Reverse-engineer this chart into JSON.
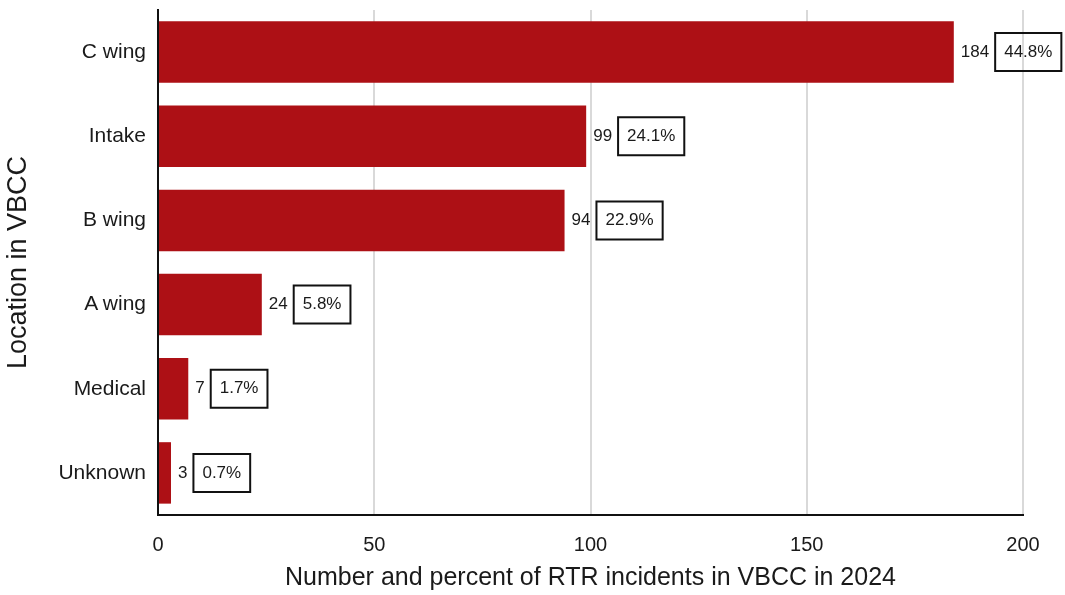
{
  "chart_data": {
    "type": "bar",
    "orientation": "horizontal",
    "categories": [
      "C wing",
      "Intake",
      "B wing",
      "A wing",
      "Medical",
      "Unknown"
    ],
    "values": [
      184,
      99,
      94,
      24,
      7,
      3
    ],
    "color": "#ad1015",
    "data_labels": true,
    "annotations": [
      {
        "text": "44.8%",
        "x": 184,
        "y": "C wing"
      },
      {
        "text": "24.1%",
        "x": 99,
        "y": "Intake"
      },
      {
        "text": "22.9%",
        "x": 94,
        "y": "B wing"
      },
      {
        "text": "5.8%",
        "x": 24,
        "y": "A wing"
      },
      {
        "text": "1.7%",
        "x": 7,
        "y": "Medical"
      },
      {
        "text": "0.7%",
        "x": 3,
        "y": "Unknown"
      }
    ],
    "xlabel": "Number and percent of RTR incidents in VBCC in 2024",
    "ylabel": "Location in VBCC",
    "xlim": [
      0,
      200
    ],
    "xticks": [
      0,
      50,
      100,
      150,
      200
    ],
    "grid": "x"
  }
}
